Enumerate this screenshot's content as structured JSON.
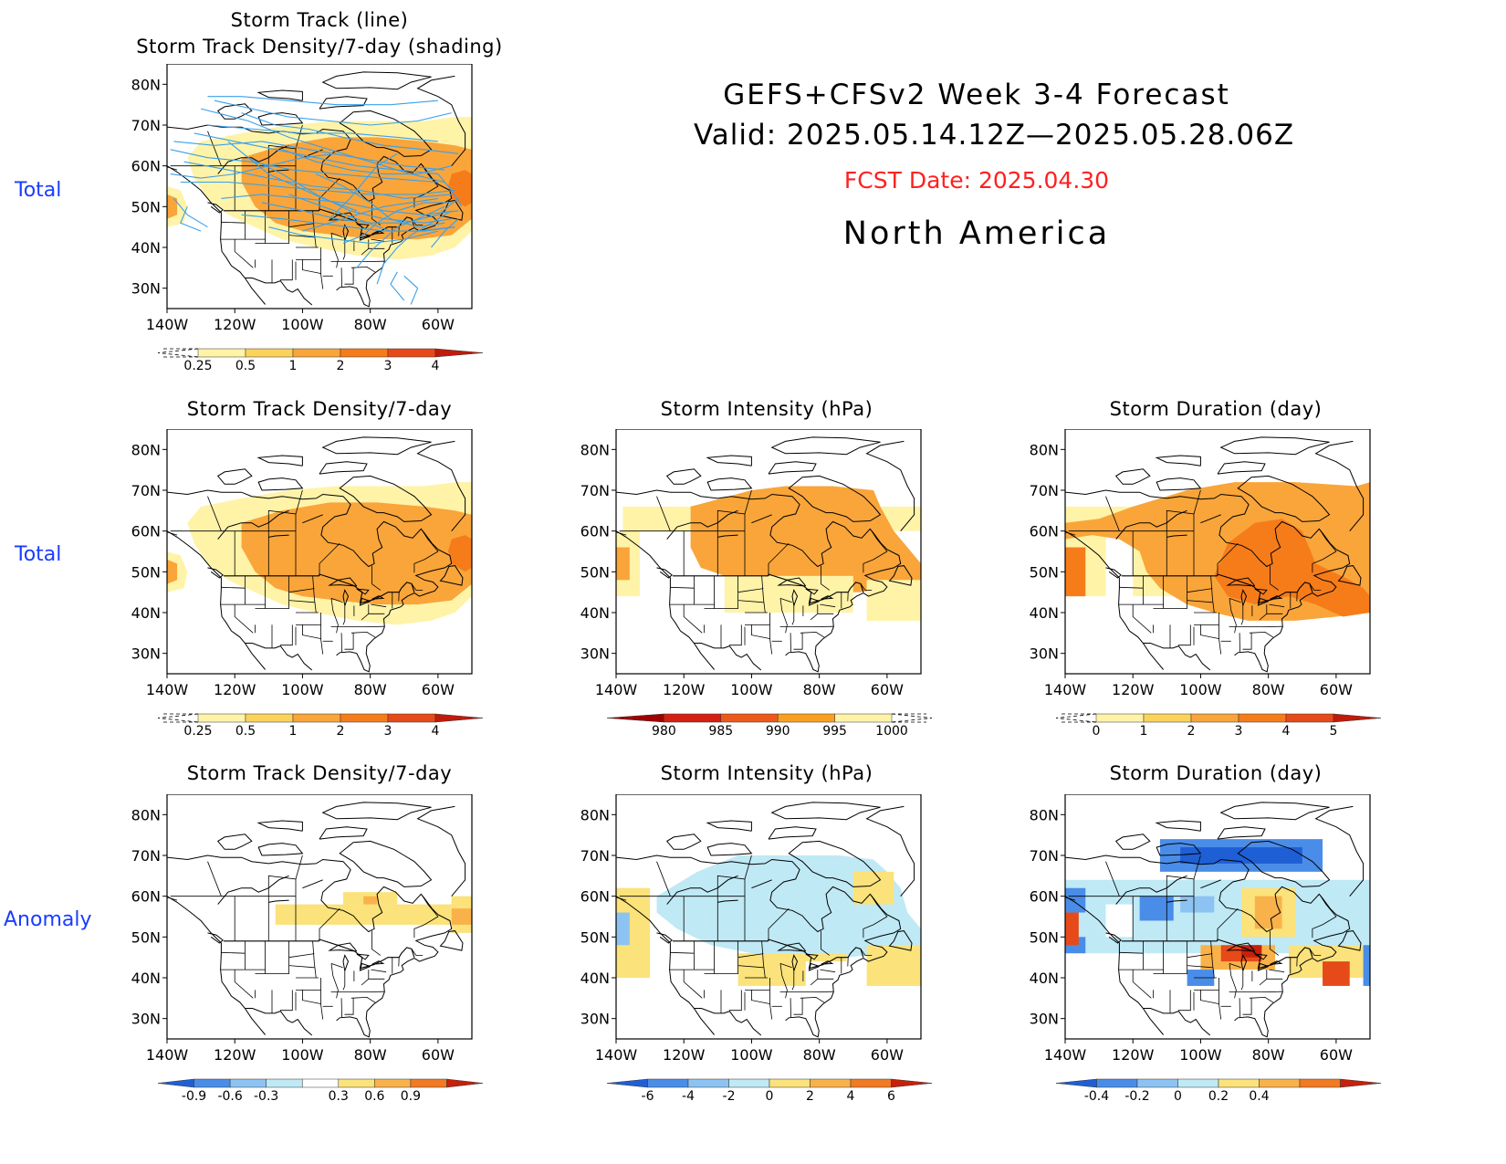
{
  "header": {
    "title": "GEFS+CFSv2 Week 3-4 Forecast",
    "valid": "Valid: 2025.05.14.12Z—2025.05.28.06Z",
    "fcst_date": "FCST Date: 2025.04.30",
    "region": "North America"
  },
  "row_labels": [
    "Total",
    "Total",
    "Anomaly"
  ],
  "axes": {
    "lat_ticks": [
      "80N",
      "70N",
      "60N",
      "50N",
      "40N",
      "30N"
    ],
    "lon_ticks": [
      "140W",
      "120W",
      "100W",
      "80W",
      "60W"
    ]
  },
  "panels": [
    {
      "id": "p1",
      "title_lines": [
        "Storm Track (line)",
        "Storm Track Density/7-day (shading)"
      ],
      "scheme": "density",
      "tracks": true,
      "colorbar": {
        "colors": [
          "#fff3a8",
          "#fbd35a",
          "#f9a53a",
          "#f67c1a",
          "#e64a19",
          "#c21a0a"
        ],
        "labels": [
          "0.25",
          "0.5",
          "1",
          "2",
          "3",
          "4"
        ],
        "neg_dashed": true
      }
    },
    {
      "id": "p2",
      "title_lines": [
        "Storm Track Density/7-day"
      ],
      "scheme": "density",
      "tracks": false,
      "colorbar": {
        "colors": [
          "#fff3a8",
          "#fbd35a",
          "#f9a53a",
          "#f67c1a",
          "#e64a19",
          "#c21a0a"
        ],
        "labels": [
          "0.25",
          "0.5",
          "1",
          "2",
          "3",
          "4"
        ],
        "neg_dashed": true
      }
    },
    {
      "id": "p3",
      "title_lines": [
        "Storm Intensity (hPa)"
      ],
      "scheme": "intensity",
      "tracks": false,
      "colorbar": {
        "colors": [
          "#a00000",
          "#d42010",
          "#ec5a1a",
          "#f9a020",
          "#fff3a8"
        ],
        "labels": [
          "980",
          "985",
          "990",
          "995",
          "1000"
        ],
        "pos_dashed": true
      }
    },
    {
      "id": "p4",
      "title_lines": [
        "Storm Duration (day)"
      ],
      "scheme": "duration",
      "tracks": false,
      "colorbar": {
        "colors": [
          "#fff3a8",
          "#fbd35a",
          "#f9a53a",
          "#f67c1a",
          "#e64a19",
          "#c21a0a"
        ],
        "labels": [
          "0",
          "1",
          "2",
          "3",
          "4",
          "5"
        ],
        "neg_dashed": true
      }
    },
    {
      "id": "p5",
      "title_lines": [
        "Storm Track Density/7-day"
      ],
      "scheme": "density_anom",
      "tracks": false,
      "colorbar": {
        "colors": [
          "#1f5fd6",
          "#4a8de8",
          "#8dc3f2",
          "#bfe9f5",
          "#ffffff",
          "#fbe27a",
          "#f9b24a",
          "#f27a22",
          "#c8200a"
        ],
        "labels": [
          "-0.9",
          "-0.6",
          "-0.3",
          "0.3",
          "0.6",
          "0.9"
        ]
      }
    },
    {
      "id": "p6",
      "title_lines": [
        "Storm Intensity (hPa)"
      ],
      "scheme": "intensity_anom",
      "tracks": false,
      "colorbar": {
        "colors": [
          "#1f5fd6",
          "#4a8de8",
          "#8dc3f2",
          "#bfe9f5",
          "#fbe27a",
          "#f9b24a",
          "#f27a22",
          "#c8200a"
        ],
        "labels": [
          "-6",
          "-4",
          "-2",
          "0",
          "2",
          "4",
          "6"
        ]
      }
    },
    {
      "id": "p7",
      "title_lines": [
        "Storm Duration (day)"
      ],
      "scheme": "duration_anom",
      "tracks": false,
      "colorbar": {
        "colors": [
          "#1f5fd6",
          "#4a8de8",
          "#8dc3f2",
          "#bfe9f5",
          "#fbe27a",
          "#f9b24a",
          "#f27a22",
          "#c8200a"
        ],
        "labels": [
          "-0.4",
          "-0.2",
          "0",
          "0.2",
          "0.4"
        ]
      }
    }
  ]
}
